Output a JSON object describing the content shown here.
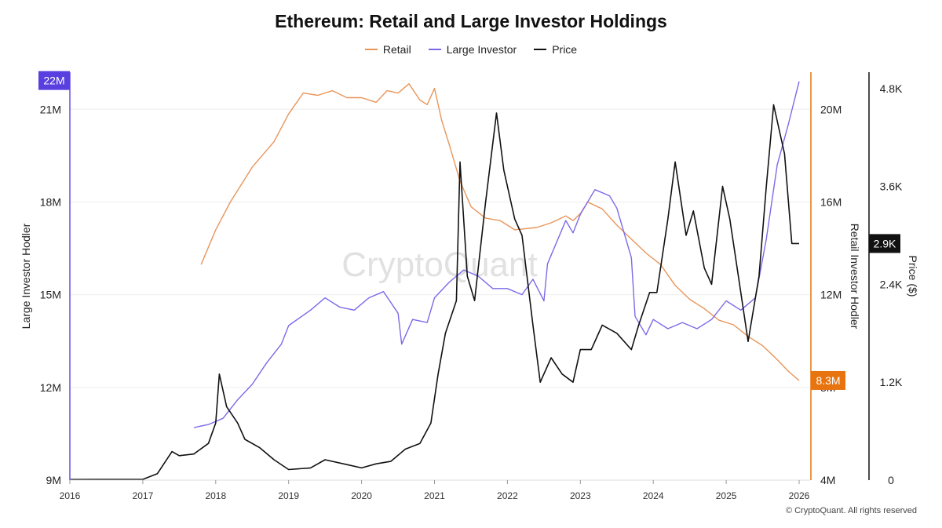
{
  "chart_data": {
    "type": "line",
    "title": "Ethereum: Retail and Large Investor Holdings",
    "watermark": "CryptoQuant",
    "copyright": "© CryptoQuant. All rights reserved",
    "x_ticks": [
      "2016",
      "2017",
      "2018",
      "2019",
      "2020",
      "2021",
      "2022",
      "2023",
      "2024",
      "2025",
      "2026"
    ],
    "x_range": [
      2016.0,
      2026.0
    ],
    "axes": {
      "left": {
        "label": "Large Investor Hodler",
        "range": [
          9,
          22.2
        ],
        "ticks": [
          "9M",
          "12M",
          "15M",
          "18M",
          "21M"
        ],
        "tick_values": [
          9,
          12,
          15,
          18,
          21
        ],
        "badge": "22M",
        "badge_value": 21.93,
        "color": "#6a4fe0"
      },
      "retail": {
        "label": "Retail Investor Hodler",
        "range": [
          4,
          21.6
        ],
        "ticks": [
          "4M",
          "8M",
          "12M",
          "16M",
          "20M"
        ],
        "tick_values": [
          4,
          8,
          12,
          16,
          20
        ],
        "badge": "8.3M",
        "badge_value": 8.3,
        "color": "#e8740f"
      },
      "price": {
        "label": "Price ($)",
        "range": [
          0,
          5000
        ],
        "ticks": [
          "0",
          "1.2K",
          "2.4K",
          "3.6K",
          "4.8K"
        ],
        "tick_values": [
          0,
          1200,
          2400,
          3600,
          4800
        ],
        "badge": "2.9K",
        "badge_value": 2900,
        "color": "#111111"
      }
    },
    "series": [
      {
        "name": "Retail",
        "axis": "retail",
        "color": "#e8955a",
        "x": [
          2017.8,
          2018.0,
          2018.2,
          2018.5,
          2018.8,
          2019.0,
          2019.2,
          2019.4,
          2019.6,
          2019.8,
          2020.0,
          2020.2,
          2020.35,
          2020.5,
          2020.65,
          2020.8,
          2020.9,
          2021.0,
          2021.1,
          2021.2,
          2021.35,
          2021.5,
          2021.7,
          2021.9,
          2022.1,
          2022.4,
          2022.6,
          2022.8,
          2022.9,
          2023.0,
          2023.1,
          2023.3,
          2023.5,
          2023.7,
          2023.9,
          2024.1,
          2024.3,
          2024.5,
          2024.7,
          2024.9,
          2025.1,
          2025.3,
          2025.5,
          2025.7,
          2025.85,
          2026.0
        ],
        "y": [
          13.3,
          14.8,
          16.0,
          17.5,
          18.6,
          19.8,
          20.7,
          20.6,
          20.8,
          20.5,
          20.5,
          20.3,
          20.8,
          20.7,
          21.1,
          20.4,
          20.2,
          20.9,
          19.5,
          18.5,
          16.9,
          15.8,
          15.3,
          15.2,
          14.8,
          14.9,
          15.1,
          15.4,
          15.2,
          15.5,
          16.0,
          15.7,
          15.0,
          14.4,
          13.8,
          13.3,
          12.4,
          11.8,
          11.4,
          10.9,
          10.7,
          10.2,
          9.8,
          9.2,
          8.7,
          8.3
        ]
      },
      {
        "name": "Large Investor",
        "axis": "left",
        "color": "#7b6ae8",
        "x": [
          2017.7,
          2017.9,
          2018.1,
          2018.3,
          2018.5,
          2018.7,
          2018.9,
          2019.0,
          2019.3,
          2019.5,
          2019.7,
          2019.9,
          2020.1,
          2020.3,
          2020.5,
          2020.55,
          2020.7,
          2020.9,
          2021.0,
          2021.2,
          2021.4,
          2021.6,
          2021.8,
          2022.0,
          2022.2,
          2022.35,
          2022.5,
          2022.55,
          2022.8,
          2022.9,
          2023.0,
          2023.2,
          2023.4,
          2023.5,
          2023.7,
          2023.75,
          2023.9,
          2024.0,
          2024.2,
          2024.4,
          2024.6,
          2024.8,
          2025.0,
          2025.2,
          2025.4,
          2025.55,
          2025.7,
          2025.85,
          2026.0
        ],
        "y": [
          10.7,
          10.8,
          11.0,
          11.6,
          12.1,
          12.8,
          13.4,
          14.0,
          14.5,
          14.9,
          14.6,
          14.5,
          14.9,
          15.1,
          14.4,
          13.4,
          14.2,
          14.1,
          14.9,
          15.4,
          15.8,
          15.6,
          15.2,
          15.2,
          15.0,
          15.5,
          14.8,
          16.0,
          17.4,
          17.0,
          17.6,
          18.4,
          18.2,
          17.8,
          16.2,
          14.3,
          13.7,
          14.2,
          13.9,
          14.1,
          13.9,
          14.2,
          14.8,
          14.5,
          14.9,
          16.8,
          19.2,
          20.5,
          21.9
        ]
      },
      {
        "name": "Price",
        "axis": "price",
        "color": "#111111",
        "x": [
          2016.0,
          2016.5,
          2017.0,
          2017.2,
          2017.4,
          2017.5,
          2017.7,
          2017.9,
          2018.0,
          2018.05,
          2018.15,
          2018.3,
          2018.4,
          2018.6,
          2018.8,
          2019.0,
          2019.3,
          2019.5,
          2019.8,
          2020.0,
          2020.2,
          2020.4,
          2020.6,
          2020.8,
          2020.95,
          2021.05,
          2021.15,
          2021.3,
          2021.35,
          2021.45,
          2021.55,
          2021.7,
          2021.85,
          2021.95,
          2022.1,
          2022.2,
          2022.35,
          2022.45,
          2022.6,
          2022.75,
          2022.9,
          2023.0,
          2023.15,
          2023.3,
          2023.5,
          2023.7,
          2023.8,
          2023.95,
          2024.05,
          2024.2,
          2024.3,
          2024.45,
          2024.55,
          2024.7,
          2024.8,
          2024.95,
          2025.05,
          2025.2,
          2025.3,
          2025.45,
          2025.55,
          2025.65,
          2025.8,
          2025.9,
          2026.0
        ],
        "y": [
          8,
          10,
          10,
          80,
          350,
          300,
          320,
          450,
          700,
          1300,
          900,
          700,
          500,
          400,
          250,
          130,
          150,
          250,
          190,
          150,
          200,
          230,
          380,
          450,
          700,
          1300,
          1800,
          2200,
          3900,
          2500,
          2200,
          3400,
          4500,
          3800,
          3200,
          3000,
          1900,
          1200,
          1500,
          1300,
          1200,
          1600,
          1600,
          1900,
          1800,
          1600,
          1900,
          2300,
          2300,
          3200,
          3900,
          3000,
          3300,
          2600,
          2400,
          3600,
          3200,
          2300,
          1700,
          2500,
          3600,
          4600,
          4000,
          2900,
          2900
        ]
      }
    ]
  }
}
